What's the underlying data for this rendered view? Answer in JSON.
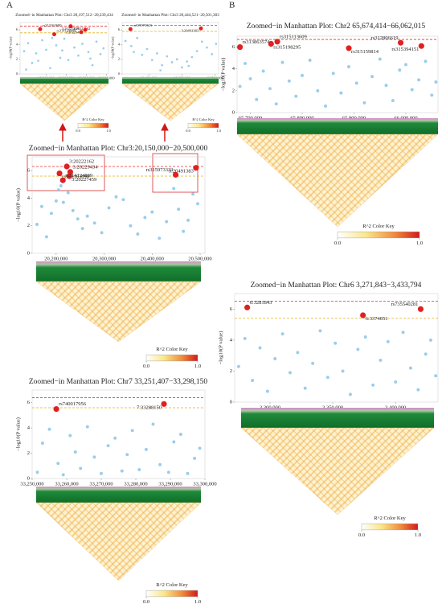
{
  "panel_labels": [
    "A",
    "B"
  ],
  "chart_data": [
    {
      "type": "scatter",
      "title": "Zoomed−in Manhattan Plot: Chr3 20,197,512−20,239,434",
      "ylabel": "−log10(P value)",
      "xlim": [
        20197000,
        20241000
      ],
      "xticks": [
        {
          "value": 20210000,
          "label": "20,210,000"
        },
        {
          "value": 20220000,
          "label": "20,220,000"
        },
        {
          "value": 20230000,
          "label": "20,230,000"
        },
        {
          "value": 20240000,
          "label": "20,240,000"
        }
      ],
      "ylim": [
        0,
        7
      ],
      "yticks": [
        0,
        2,
        4,
        6
      ],
      "thresholds": [
        {
          "value": 6.5,
          "color": "#e8312f"
        },
        {
          "value": 5.6,
          "color": "#e0b020"
        }
      ],
      "series": [
        {
          "color": "#87c4e6",
          "x": [
            20199000,
            20201000,
            20203000,
            20205000,
            20208000,
            20210000,
            20212000,
            20215000,
            20217000,
            20219000,
            20221000,
            20224000,
            20226000,
            20228000,
            20231000,
            20233000,
            20235000,
            20237000,
            20238500,
            20200000,
            20206000,
            20213000,
            20218000,
            20232000
          ],
          "values": [
            3.1,
            4.2,
            1.5,
            2.8,
            4.6,
            3.3,
            0.8,
            3.9,
            2.2,
            4.8,
            1.9,
            3.6,
            2.5,
            4.1,
            3.0,
            1.2,
            4.4,
            2.7,
            3.5,
            0.6,
            1.8,
            4.9,
            3.2,
            2.1
          ]
        },
        {
          "color": "#e02020",
          "x": [
            20207000,
            20222162,
            20214000,
            20229434,
            20227459
          ],
          "values": [
            6.1,
            6.5,
            5.4,
            6.0,
            5.7
          ],
          "labels": [
            "rs313163690",
            "3:20222162",
            "rs314124889",
            "3:20229434",
            "3:20227459"
          ]
        }
      ],
      "color_key": {
        "title": "R^2 Color Key",
        "ticks": [
          {
            "value": 0,
            "label": "0.0"
          },
          {
            "value": 1,
            "label": "1.0"
          }
        ]
      }
    },
    {
      "type": "scatter",
      "title": "Zoomed−in Manhattan Plot: Chr3 20,444,521−20,501,383",
      "ylabel": "−log10(P value)",
      "xlim": [
        20444000,
        20502000
      ],
      "xticks": [
        {
          "value": 20460000,
          "label": "20,460,000"
        },
        {
          "value": 20480000,
          "label": "20,480,000"
        },
        {
          "value": 20500000,
          "label": "20,500,000"
        }
      ],
      "ylim": [
        0,
        7
      ],
      "yticks": [
        0,
        2,
        4,
        6
      ],
      "thresholds": [
        {
          "value": 6.6,
          "color": "#e8312f"
        },
        {
          "value": 5.8,
          "color": "#e0b020"
        }
      ],
      "series": [
        {
          "color": "#87c4e6",
          "x": [
            20446000,
            20449500,
            20453000,
            20456000,
            20459000,
            20462000,
            20465000,
            20468000,
            20471000,
            20474000,
            20477000,
            20480000,
            20483000,
            20486000,
            20489000,
            20492000,
            20495000,
            20498000,
            20500500,
            20451000,
            20467000,
            20484000
          ],
          "values": [
            4.5,
            3.8,
            4.9,
            2.6,
            3.4,
            1.9,
            2.8,
            1.2,
            2.4,
            1.6,
            2.0,
            0.9,
            1.7,
            2.3,
            3.1,
            4.4,
            3.6,
            2.7,
            4.1,
            3.0,
            0.5,
            1.1
          ]
        },
        {
          "color": "#e02020",
          "x": [
            20449000,
            20491383
          ],
          "values": [
            6.1,
            6.2
          ],
          "labels": [
            "rs315973323",
            "3:20491383"
          ]
        }
      ],
      "color_key": {
        "title": "R^2 Color Key",
        "ticks": [
          {
            "value": 0,
            "label": "0.0"
          },
          {
            "value": 1,
            "label": "1.0"
          }
        ]
      }
    },
    {
      "type": "scatter",
      "title": "Zoomed−in Manhattan Plot: Chr3:20,150,000−20,500,000",
      "ylabel": "−log10(P value)",
      "xlim": [
        20150000,
        20510000
      ],
      "xticks": [
        {
          "value": 20200000,
          "label": "20,200,000"
        },
        {
          "value": 20300000,
          "label": "20,300,000"
        },
        {
          "value": 20400000,
          "label": "20,400,000"
        },
        {
          "value": 20500000,
          "label": "20,500,000"
        }
      ],
      "ylim": [
        0,
        7
      ],
      "yticks": [
        0,
        2,
        4,
        6
      ],
      "thresholds": [
        {
          "value": 6.3,
          "color": "#e8312f"
        },
        {
          "value": 5.6,
          "color": "#e0b020"
        }
      ],
      "series": [
        {
          "color": "#87c4e6",
          "x": [
            20160000,
            20170000,
            20180000,
            20190000,
            20200000,
            20205000,
            20210000,
            20215000,
            20225000,
            20235000,
            20245000,
            20255000,
            20265000,
            20280000,
            20295000,
            20310000,
            20325000,
            20340000,
            20355000,
            20370000,
            20385000,
            20400000,
            20415000,
            20430000,
            20445000,
            20455000,
            20465000,
            20475000,
            20485000,
            20495000
          ],
          "values": [
            2.1,
            3.4,
            1.2,
            2.9,
            3.8,
            4.6,
            4.9,
            3.7,
            4.4,
            3.1,
            2.5,
            1.8,
            2.7,
            2.2,
            1.5,
            3.3,
            4.1,
            3.9,
            2.0,
            1.4,
            2.6,
            3.0,
            1.1,
            2.3,
            4.7,
            3.2,
            1.6,
            2.4,
            4.3,
            3.6
          ]
        },
        {
          "color": "#e02020",
          "x": [
            20222162,
            20207000,
            20229434,
            20227459,
            20214000,
            20491383,
            20449000
          ],
          "values": [
            6.3,
            5.8,
            5.9,
            5.6,
            5.3,
            6.2,
            5.7
          ],
          "labels": [
            "3:20222162",
            "rs313163690",
            "3:20229434",
            "3:20227459",
            "rs314124889",
            "3:20491383",
            "rs315973323"
          ]
        }
      ],
      "color_key": {
        "title": "R^2 Color Key",
        "ticks": [
          {
            "value": 0,
            "label": "0.0"
          },
          {
            "value": 1,
            "label": "1.0"
          }
        ]
      }
    },
    {
      "type": "scatter",
      "title": "Zoomed−in Manhattan Plot: Chr7 33,251,407−33,298,150",
      "ylabel": "−log10(P value)",
      "xlim": [
        33250000,
        33300000
      ],
      "xticks": [
        {
          "value": 33250000,
          "label": "33,250,000"
        },
        {
          "value": 33260000,
          "label": "33,260,000"
        },
        {
          "value": 33270000,
          "label": "33,270,000"
        },
        {
          "value": 33280000,
          "label": "33,280,000"
        },
        {
          "value": 33290000,
          "label": "33,290,000"
        },
        {
          "value": 33300000,
          "label": "33,300,000"
        }
      ],
      "ylim": [
        0,
        7
      ],
      "yticks": [
        0,
        2,
        4,
        6
      ],
      "thresholds": [
        {
          "value": 6.4,
          "color": "#e8312f"
        },
        {
          "value": 5.6,
          "color": "#e0b020"
        }
      ],
      "series": [
        {
          "color": "#87c4e6",
          "x": [
            33251500,
            33253000,
            33255000,
            33257500,
            33259000,
            33261000,
            33262500,
            33264000,
            33266000,
            33268000,
            33270000,
            33272000,
            33274000,
            33276000,
            33277500,
            33279000,
            33281000,
            33283000,
            33285000,
            33287000,
            33289500,
            33291000,
            33293000,
            33295000,
            33297000,
            33298500
          ],
          "values": [
            0.5,
            2.8,
            3.9,
            1.2,
            0.3,
            3.4,
            2.1,
            0.8,
            4.1,
            1.7,
            0.4,
            2.6,
            3.2,
            0.6,
            1.9,
            3.8,
            0.7,
            2.3,
            4.3,
            1.1,
            0.5,
            2.9,
            3.5,
            0.4,
            1.6,
            2.4
          ]
        },
        {
          "color": "#e02020",
          "x": [
            33257000,
            33288150
          ],
          "values": [
            5.5,
            5.9
          ],
          "labels": [
            "rs740017956",
            "7:33288150"
          ]
        }
      ],
      "color_key": {
        "title": "R^2 Color Key",
        "ticks": [
          {
            "value": 0,
            "label": "0.0"
          },
          {
            "value": 1,
            "label": "1.0"
          }
        ]
      }
    },
    {
      "type": "scatter",
      "title": "Zoomed−in Manhattan Plot: Chr2 65,674,414−66,062,015",
      "ylabel": "−log10(P value)",
      "xlim": [
        65674414,
        66062015
      ],
      "xticks": [
        {
          "value": 65700000,
          "label": "65,700,000"
        },
        {
          "value": 65800000,
          "label": "65,800,000"
        },
        {
          "value": 65900000,
          "label": "65,900,000"
        },
        {
          "value": 66000000,
          "label": "66,000,000"
        }
      ],
      "ylim": [
        0,
        7
      ],
      "yticks": [
        0,
        2,
        4,
        6
      ],
      "thresholds": [
        {
          "value": 6.7,
          "color": "#e8312f"
        }
      ],
      "series": [
        {
          "color": "#87c4e6",
          "x": [
            65680000,
            65690000,
            65700000,
            65712000,
            65725000,
            65738000,
            65750000,
            65762000,
            65775000,
            65788000,
            65800000,
            65815000,
            65830000,
            65845000,
            65860000,
            65875000,
            65890000,
            65905000,
            65920000,
            65935000,
            65950000,
            65962000,
            65975000,
            65988000,
            66000000,
            66012000,
            66025000,
            66038000,
            66050000,
            66058000
          ],
          "values": [
            2.4,
            4.5,
            3.1,
            1.2,
            3.8,
            2.2,
            0.8,
            4.6,
            2.9,
            1.5,
            3.4,
            4.8,
            2.0,
            0.6,
            3.6,
            1.8,
            4.2,
            2.7,
            0.9,
            3.3,
            4.9,
            2.5,
            1.1,
            3.9,
            4.4,
            2.1,
            3.0,
            4.7,
            1.6,
            2.8
          ]
        },
        {
          "color": "#e02020",
          "x": [
            65680000,
            65740000,
            65752000,
            65890000,
            65990000,
            66030000
          ],
          "values": [
            6.0,
            6.3,
            6.5,
            5.9,
            6.4,
            6.1
          ],
          "labels": [
            "rs313863574",
            "rs315198295",
            "rs315113609",
            "rs315159814",
            "rs312806619",
            "rs315394151"
          ]
        }
      ],
      "color_key": {
        "title": "R^2 Color Key",
        "ticks": [
          {
            "value": 0,
            "label": "0.0"
          },
          {
            "value": 1,
            "label": "1.0"
          }
        ]
      }
    },
    {
      "type": "scatter",
      "title": "Zoomed−in Manhattan Plot: Chr6 3,271,843−3,433,794",
      "ylabel": "−log10(P value)",
      "xlim": [
        3271843,
        3433794
      ],
      "xticks": [
        {
          "value": 3300000,
          "label": "3,300,000"
        },
        {
          "value": 3350000,
          "label": "3,350,000"
        },
        {
          "value": 3400000,
          "label": "3,400,000"
        }
      ],
      "ylim": [
        0,
        7
      ],
      "yticks": [
        0,
        2,
        4,
        6
      ],
      "thresholds": [
        {
          "value": 6.5,
          "color": "#e8312f"
        },
        {
          "value": 5.4,
          "color": "#e0b020"
        }
      ],
      "series": [
        {
          "color": "#87c4e6",
          "x": [
            3275000,
            3280000,
            3286000,
            3292000,
            3298000,
            3304000,
            3310000,
            3316000,
            3322000,
            3328000,
            3334000,
            3340000,
            3346000,
            3352000,
            3358000,
            3364000,
            3370000,
            3376000,
            3382000,
            3388000,
            3394000,
            3400000,
            3406000,
            3412000,
            3418000,
            3424000,
            3428000,
            3432000
          ],
          "values": [
            2.3,
            4.1,
            1.4,
            3.5,
            0.7,
            2.8,
            4.4,
            1.9,
            3.2,
            0.9,
            2.5,
            4.6,
            1.6,
            3.8,
            2.0,
            0.5,
            3.4,
            4.2,
            1.1,
            2.7,
            3.9,
            1.3,
            4.5,
            2.2,
            0.8,
            3.1,
            4.0,
            1.7
          ]
        },
        {
          "color": "#e02020",
          "x": [
            3281843,
            3374051,
            3420000
          ],
          "values": [
            6.1,
            5.6,
            6.0
          ],
          "labels": [
            "6:3281843",
            "6:3374051",
            "rs735540281"
          ]
        }
      ],
      "color_key": {
        "title": "R^2 Color Key",
        "ticks": [
          {
            "value": 0,
            "label": "0.0"
          },
          {
            "value": 1,
            "label": "1.0"
          }
        ]
      }
    }
  ]
}
